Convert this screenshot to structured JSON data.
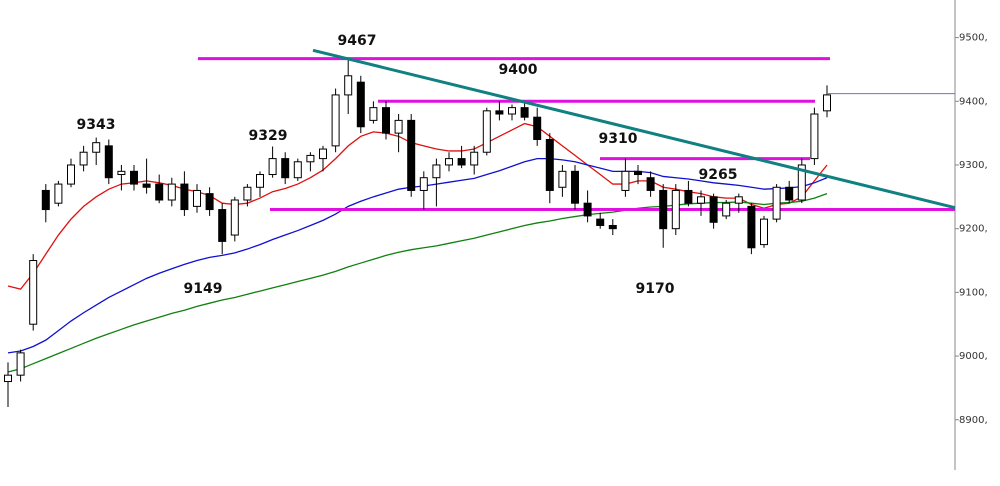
{
  "chart_data": {
    "type": "candlestick",
    "ylim": [
      8796,
      9559
    ],
    "yticks": [
      {
        "value": 9500,
        "label": "9500,"
      },
      {
        "value": 9400,
        "label": "9400,"
      },
      {
        "value": 9300,
        "label": "9300,"
      },
      {
        "value": 9200,
        "label": "9200,"
      },
      {
        "value": 9100,
        "label": "9100,"
      },
      {
        "value": 9000,
        "label": "9000,"
      },
      {
        "value": 8900,
        "label": "8900,"
      }
    ],
    "open": [
      8960,
      8970,
      9050,
      9260,
      9240,
      9270,
      9300,
      9320,
      9330,
      9285,
      9290,
      9270,
      9270,
      9245,
      9270,
      9235,
      9255,
      9230,
      9190,
      9245,
      9265,
      9285,
      9310,
      9280,
      9305,
      9310,
      9330,
      9410,
      9430,
      9370,
      9390,
      9350,
      9370,
      9260,
      9280,
      9300,
      9310,
      9300,
      9320,
      9385,
      9380,
      9390,
      9375,
      9340,
      9265,
      9290,
      9240,
      9215,
      9205,
      9260,
      9290,
      9280,
      9260,
      9200,
      9260,
      9240,
      9250,
      9220,
      9240,
      9235,
      9175,
      9215,
      9265,
      9245,
      9310,
      9385
    ],
    "high": [
      8990,
      9010,
      9160,
      9270,
      9275,
      9310,
      9330,
      9343,
      9340,
      9300,
      9300,
      9310,
      9285,
      9280,
      9290,
      9270,
      9265,
      9240,
      9250,
      9270,
      9290,
      9329,
      9320,
      9310,
      9320,
      9330,
      9420,
      9467,
      9440,
      9400,
      9400,
      9380,
      9380,
      9290,
      9310,
      9320,
      9330,
      9330,
      9390,
      9400,
      9395,
      9400,
      9390,
      9350,
      9300,
      9300,
      9260,
      9225,
      9215,
      9310,
      9300,
      9290,
      9270,
      9270,
      9275,
      9260,
      9255,
      9245,
      9255,
      9240,
      9220,
      9270,
      9275,
      9310,
      9390,
      9425
    ],
    "low": [
      8920,
      8960,
      9040,
      9210,
      9235,
      9265,
      9290,
      9300,
      9270,
      9260,
      9260,
      9255,
      9240,
      9235,
      9220,
      9225,
      9220,
      9160,
      9180,
      9235,
      9250,
      9280,
      9270,
      9275,
      9290,
      9290,
      9320,
      9380,
      9350,
      9365,
      9340,
      9320,
      9250,
      9230,
      9235,
      9290,
      9295,
      9285,
      9315,
      9370,
      9370,
      9370,
      9330,
      9240,
      9250,
      9230,
      9210,
      9200,
      9190,
      9250,
      9270,
      9250,
      9170,
      9190,
      9235,
      9220,
      9200,
      9215,
      9225,
      9160,
      9170,
      9210,
      9240,
      9240,
      9300,
      9375
    ],
    "close": [
      8970,
      9005,
      9150,
      9230,
      9270,
      9300,
      9320,
      9335,
      9280,
      9290,
      9270,
      9265,
      9245,
      9270,
      9230,
      9260,
      9230,
      9180,
      9245,
      9265,
      9285,
      9310,
      9280,
      9305,
      9315,
      9325,
      9410,
      9440,
      9360,
      9390,
      9350,
      9370,
      9260,
      9280,
      9300,
      9310,
      9300,
      9320,
      9385,
      9380,
      9390,
      9375,
      9340,
      9260,
      9290,
      9240,
      9220,
      9205,
      9200,
      9290,
      9285,
      9260,
      9200,
      9260,
      9240,
      9250,
      9210,
      9240,
      9250,
      9170,
      9215,
      9265,
      9245,
      9300,
      9380,
      9410
    ],
    "series": [
      {
        "color": "#e01010",
        "values": [
          9110,
          9105,
          9130,
          9160,
          9190,
          9215,
          9235,
          9250,
          9262,
          9270,
          9272,
          9275,
          9272,
          9268,
          9262,
          9258,
          9252,
          9240,
          9238,
          9240,
          9248,
          9258,
          9263,
          9270,
          9280,
          9292,
          9310,
          9330,
          9345,
          9352,
          9350,
          9345,
          9335,
          9330,
          9325,
          9322,
          9322,
          9325,
          9335,
          9345,
          9355,
          9365,
          9360,
          9345,
          9330,
          9315,
          9300,
          9285,
          9270,
          9270,
          9275,
          9275,
          9265,
          9262,
          9258,
          9255,
          9250,
          9248,
          9248,
          9238,
          9232,
          9238,
          9240,
          9250,
          9275,
          9300
        ]
      },
      {
        "color": "#1010d0",
        "values": [
          9005,
          9008,
          9015,
          9025,
          9040,
          9055,
          9068,
          9080,
          9092,
          9102,
          9112,
          9122,
          9130,
          9137,
          9144,
          9150,
          9155,
          9158,
          9162,
          9168,
          9175,
          9183,
          9190,
          9197,
          9205,
          9213,
          9223,
          9235,
          9243,
          9250,
          9256,
          9262,
          9265,
          9267,
          9270,
          9273,
          9276,
          9279,
          9285,
          9291,
          9298,
          9305,
          9310,
          9310,
          9308,
          9305,
          9300,
          9295,
          9290,
          9290,
          9290,
          9288,
          9282,
          9280,
          9278,
          9275,
          9272,
          9270,
          9268,
          9265,
          9262,
          9263,
          9264,
          9266,
          9272,
          9280
        ]
      },
      {
        "color": "#108010",
        "values": [
          8975,
          8980,
          8988,
          8996,
          9004,
          9012,
          9020,
          9028,
          9035,
          9042,
          9049,
          9055,
          9061,
          9067,
          9072,
          9078,
          9083,
          9088,
          9092,
          9097,
          9102,
          9107,
          9112,
          9117,
          9122,
          9127,
          9133,
          9140,
          9146,
          9152,
          9158,
          9163,
          9167,
          9170,
          9173,
          9177,
          9181,
          9185,
          9190,
          9195,
          9200,
          9205,
          9209,
          9212,
          9216,
          9219,
          9222,
          9224,
          9226,
          9229,
          9232,
          9234,
          9235,
          9237,
          9239,
          9240,
          9241,
          9241,
          9242,
          9240,
          9238,
          9240,
          9241,
          9243,
          9248,
          9255
        ]
      }
    ],
    "levels": [
      9467,
      9400,
      9310,
      9230
    ],
    "level_color": "#e010e0",
    "trendline": [
      9480,
      9233
    ],
    "trend_color": "#108080",
    "last_price": 9412,
    "annotations": [
      "9467",
      "9400",
      "9343",
      "9329",
      "9310",
      "9265",
      "9149",
      "9170"
    ]
  }
}
